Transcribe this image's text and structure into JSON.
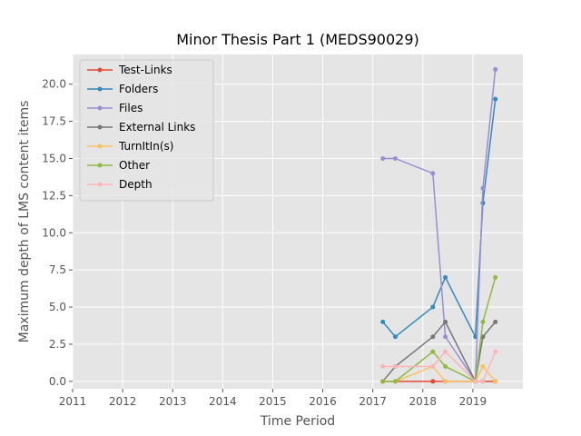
{
  "chart_data": {
    "type": "line",
    "title": "Minor Thesis Part 1 (MEDS90029)",
    "xlabel": "Time Period",
    "ylabel": "Maximum depth of LMS content items",
    "xlim": [
      2011,
      2020
    ],
    "ylim": [
      -0.5,
      22
    ],
    "x_ticks": [
      2011,
      2012,
      2013,
      2014,
      2015,
      2016,
      2017,
      2018,
      2019
    ],
    "x_tick_labels": [
      "2011",
      "2012",
      "2013",
      "2014",
      "2015",
      "2016",
      "2017",
      "2018",
      "2019"
    ],
    "y_ticks": [
      0,
      2.5,
      5,
      7.5,
      10,
      12.5,
      15,
      17.5,
      20
    ],
    "y_tick_labels": [
      "0.0",
      "2.5",
      "5.0",
      "7.5",
      "10.0",
      "12.5",
      "15.0",
      "17.5",
      "20.0"
    ],
    "grid": true,
    "legend_position": "upper-left",
    "x": [
      2017.2,
      2017.45,
      2018.2,
      2018.45,
      2019.05,
      2019.2,
      2019.45
    ],
    "series": [
      {
        "name": "Test-Links",
        "color": "#e24a33",
        "values": [
          0,
          0,
          0,
          0,
          0,
          0,
          0
        ]
      },
      {
        "name": "Folders",
        "color": "#348abd",
        "values": [
          4,
          3,
          5,
          7,
          3,
          12,
          19
        ]
      },
      {
        "name": "Files",
        "color": "#988ed5",
        "values": [
          15,
          15,
          14,
          3,
          0,
          13,
          21
        ]
      },
      {
        "name": "External Links",
        "color": "#777777",
        "values": [
          0,
          1,
          3,
          4,
          0,
          3,
          4
        ]
      },
      {
        "name": "TurnItIn(s)",
        "color": "#fbc15e",
        "values": [
          0,
          0,
          1,
          0,
          0,
          1,
          0
        ]
      },
      {
        "name": "Other",
        "color": "#8eba42",
        "values": [
          0,
          0,
          2,
          1,
          0,
          4,
          7
        ]
      },
      {
        "name": "Depth",
        "color": "#ffb5b8",
        "values": [
          1,
          1,
          1,
          2,
          0,
          0,
          2
        ]
      }
    ]
  }
}
